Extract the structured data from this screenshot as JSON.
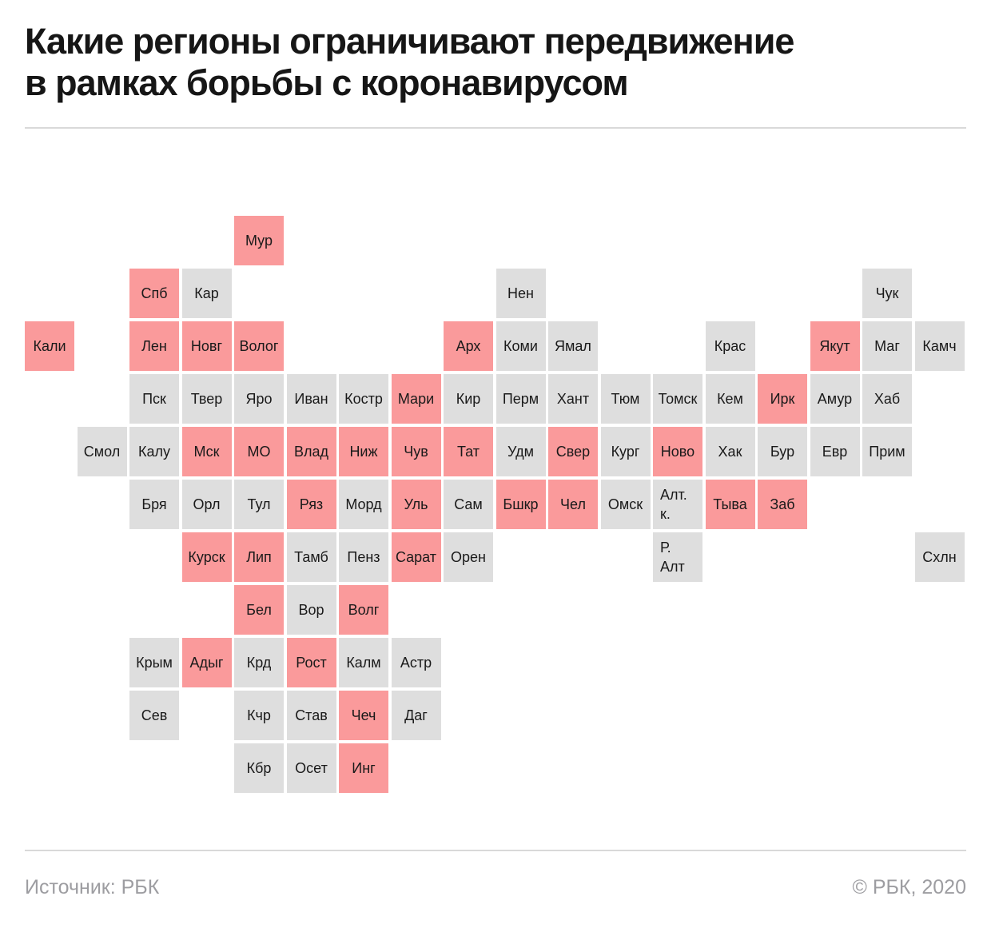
{
  "header": {
    "title_line1": "Какие регионы ограничивают передвижение",
    "title_line2": "в рамках борьбы с коронавирусом"
  },
  "footer": {
    "source": "Источник: РБК",
    "copyright": "© РБК, 2020"
  },
  "colors": {
    "restricted_tile": "#FA9A9B",
    "normal_tile": "#DEDEDE",
    "tile_text": "#1A1A1A",
    "title_text": "#161616",
    "footer_text": "#9D9DA1",
    "divider": "#D9D9D9",
    "background": "#FFFFFF"
  },
  "chart_data": {
    "type": "heatmap",
    "subtype": "tile_grid_map",
    "title": "Какие регионы ограничивают передвижение в рамках борьбы с коронавирусом",
    "highlight_meaning": "регион ограничивает передвижение",
    "total_regions": 85,
    "restricted_count": 33,
    "grid_rows": 11,
    "grid_columns": 18,
    "tiles": [
      {
        "label": "Мур",
        "row": 0,
        "col": 4,
        "restricted": true
      },
      {
        "label": "Спб",
        "row": 1,
        "col": 2,
        "restricted": true
      },
      {
        "label": "Кар",
        "row": 1,
        "col": 3,
        "restricted": false
      },
      {
        "label": "Нен",
        "row": 1,
        "col": 9,
        "restricted": false
      },
      {
        "label": "Чук",
        "row": 1,
        "col": 16,
        "restricted": false
      },
      {
        "label": "Кали",
        "row": 2,
        "col": 0,
        "restricted": true
      },
      {
        "label": "Лен",
        "row": 2,
        "col": 2,
        "restricted": true
      },
      {
        "label": "Новг",
        "row": 2,
        "col": 3,
        "restricted": true
      },
      {
        "label": "Волог",
        "row": 2,
        "col": 4,
        "restricted": true
      },
      {
        "label": "Арх",
        "row": 2,
        "col": 8,
        "restricted": true
      },
      {
        "label": "Коми",
        "row": 2,
        "col": 9,
        "restricted": false
      },
      {
        "label": "Ямал",
        "row": 2,
        "col": 10,
        "restricted": false
      },
      {
        "label": "Крас",
        "row": 2,
        "col": 13,
        "restricted": false
      },
      {
        "label": "Якут",
        "row": 2,
        "col": 15,
        "restricted": true
      },
      {
        "label": "Маг",
        "row": 2,
        "col": 16,
        "restricted": false
      },
      {
        "label": "Камч",
        "row": 2,
        "col": 17,
        "restricted": false
      },
      {
        "label": "Пск",
        "row": 3,
        "col": 2,
        "restricted": false
      },
      {
        "label": "Твер",
        "row": 3,
        "col": 3,
        "restricted": false
      },
      {
        "label": "Яро",
        "row": 3,
        "col": 4,
        "restricted": false
      },
      {
        "label": "Иван",
        "row": 3,
        "col": 5,
        "restricted": false
      },
      {
        "label": "Костр",
        "row": 3,
        "col": 6,
        "restricted": false
      },
      {
        "label": "Мари",
        "row": 3,
        "col": 7,
        "restricted": true
      },
      {
        "label": "Кир",
        "row": 3,
        "col": 8,
        "restricted": false
      },
      {
        "label": "Перм",
        "row": 3,
        "col": 9,
        "restricted": false
      },
      {
        "label": "Хант",
        "row": 3,
        "col": 10,
        "restricted": false
      },
      {
        "label": "Тюм",
        "row": 3,
        "col": 11,
        "restricted": false
      },
      {
        "label": "Томск",
        "row": 3,
        "col": 12,
        "restricted": false
      },
      {
        "label": "Кем",
        "row": 3,
        "col": 13,
        "restricted": false
      },
      {
        "label": "Ирк",
        "row": 3,
        "col": 14,
        "restricted": true
      },
      {
        "label": "Амур",
        "row": 3,
        "col": 15,
        "restricted": false
      },
      {
        "label": "Хаб",
        "row": 3,
        "col": 16,
        "restricted": false
      },
      {
        "label": "Смол",
        "row": 4,
        "col": 1,
        "restricted": false
      },
      {
        "label": "Калу",
        "row": 4,
        "col": 2,
        "restricted": false
      },
      {
        "label": "Мск",
        "row": 4,
        "col": 3,
        "restricted": true
      },
      {
        "label": "МО",
        "row": 4,
        "col": 4,
        "restricted": true
      },
      {
        "label": "Влад",
        "row": 4,
        "col": 5,
        "restricted": true
      },
      {
        "label": "Ниж",
        "row": 4,
        "col": 6,
        "restricted": true
      },
      {
        "label": "Чув",
        "row": 4,
        "col": 7,
        "restricted": true
      },
      {
        "label": "Тат",
        "row": 4,
        "col": 8,
        "restricted": true
      },
      {
        "label": "Удм",
        "row": 4,
        "col": 9,
        "restricted": false
      },
      {
        "label": "Свер",
        "row": 4,
        "col": 10,
        "restricted": true
      },
      {
        "label": "Кург",
        "row": 4,
        "col": 11,
        "restricted": false
      },
      {
        "label": "Ново",
        "row": 4,
        "col": 12,
        "restricted": true
      },
      {
        "label": "Хак",
        "row": 4,
        "col": 13,
        "restricted": false
      },
      {
        "label": "Бур",
        "row": 4,
        "col": 14,
        "restricted": false
      },
      {
        "label": "Евр",
        "row": 4,
        "col": 15,
        "restricted": false
      },
      {
        "label": "Прим",
        "row": 4,
        "col": 16,
        "restricted": false
      },
      {
        "label": "Бря",
        "row": 5,
        "col": 2,
        "restricted": false
      },
      {
        "label": "Орл",
        "row": 5,
        "col": 3,
        "restricted": false
      },
      {
        "label": "Тул",
        "row": 5,
        "col": 4,
        "restricted": false
      },
      {
        "label": "Ряз",
        "row": 5,
        "col": 5,
        "restricted": true
      },
      {
        "label": "Морд",
        "row": 5,
        "col": 6,
        "restricted": false
      },
      {
        "label": "Уль",
        "row": 5,
        "col": 7,
        "restricted": true
      },
      {
        "label": "Сам",
        "row": 5,
        "col": 8,
        "restricted": false
      },
      {
        "label": "Бшкр",
        "row": 5,
        "col": 9,
        "restricted": true
      },
      {
        "label": "Чел",
        "row": 5,
        "col": 10,
        "restricted": true
      },
      {
        "label": "Омск",
        "row": 5,
        "col": 11,
        "restricted": false
      },
      {
        "label": "Алт.\nк.",
        "row": 5,
        "col": 12,
        "restricted": false
      },
      {
        "label": "Тыва",
        "row": 5,
        "col": 13,
        "restricted": true
      },
      {
        "label": "Заб",
        "row": 5,
        "col": 14,
        "restricted": true
      },
      {
        "label": "Курск",
        "row": 6,
        "col": 3,
        "restricted": true
      },
      {
        "label": "Лип",
        "row": 6,
        "col": 4,
        "restricted": true
      },
      {
        "label": "Тамб",
        "row": 6,
        "col": 5,
        "restricted": false
      },
      {
        "label": "Пенз",
        "row": 6,
        "col": 6,
        "restricted": false
      },
      {
        "label": "Сарат",
        "row": 6,
        "col": 7,
        "restricted": true
      },
      {
        "label": "Орен",
        "row": 6,
        "col": 8,
        "restricted": false
      },
      {
        "label": "Р.\nАлт",
        "row": 6,
        "col": 12,
        "restricted": false
      },
      {
        "label": "Схлн",
        "row": 6,
        "col": 17,
        "restricted": false
      },
      {
        "label": "Бел",
        "row": 7,
        "col": 4,
        "restricted": true
      },
      {
        "label": "Вор",
        "row": 7,
        "col": 5,
        "restricted": false
      },
      {
        "label": "Волг",
        "row": 7,
        "col": 6,
        "restricted": true
      },
      {
        "label": "Крым",
        "row": 8,
        "col": 2,
        "restricted": false
      },
      {
        "label": "Адыг",
        "row": 8,
        "col": 3,
        "restricted": true
      },
      {
        "label": "Крд",
        "row": 8,
        "col": 4,
        "restricted": false
      },
      {
        "label": "Рост",
        "row": 8,
        "col": 5,
        "restricted": true
      },
      {
        "label": "Калм",
        "row": 8,
        "col": 6,
        "restricted": false
      },
      {
        "label": "Астр",
        "row": 8,
        "col": 7,
        "restricted": false
      },
      {
        "label": "Сев",
        "row": 9,
        "col": 2,
        "restricted": false
      },
      {
        "label": "Кчр",
        "row": 9,
        "col": 4,
        "restricted": false
      },
      {
        "label": "Став",
        "row": 9,
        "col": 5,
        "restricted": false
      },
      {
        "label": "Чеч",
        "row": 9,
        "col": 6,
        "restricted": true
      },
      {
        "label": "Даг",
        "row": 9,
        "col": 7,
        "restricted": false
      },
      {
        "label": "Кбр",
        "row": 10,
        "col": 4,
        "restricted": false
      },
      {
        "label": "Осет",
        "row": 10,
        "col": 5,
        "restricted": false
      },
      {
        "label": "Инг",
        "row": 10,
        "col": 6,
        "restricted": true
      }
    ]
  }
}
